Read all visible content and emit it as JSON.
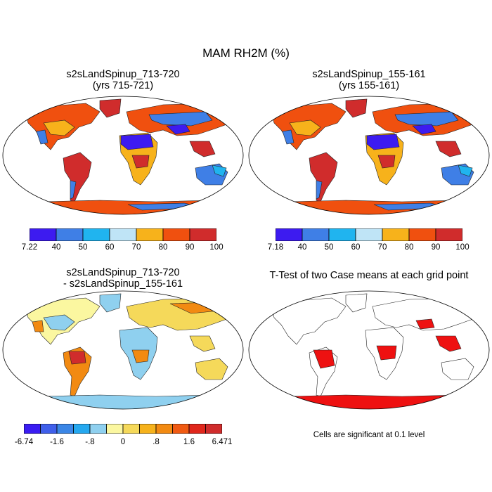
{
  "figure": {
    "title": "MAM RH2M (%)",
    "panels": [
      {
        "title_line1": "s2sLandSpinup_713-720",
        "title_line2": "(yrs 715-721)"
      },
      {
        "title_line1": "s2sLandSpinup_155-161",
        "title_line2": "(yrs 155-161)"
      },
      {
        "title_line1": "s2sLandSpinup_713-720",
        "title_line2": "- s2sLandSpinup_155-161"
      },
      {
        "title_line1": "T-Test of two Case means at each grid point",
        "title_line2": ""
      }
    ],
    "significance_note": "Cells are significant at 0.1 level"
  },
  "colorbars": {
    "rh1": {
      "colors": [
        "#3d1bf0",
        "#3f7fe6",
        "#20b4ef",
        "#bfe4f6",
        "#f7b21b",
        "#f0500f",
        "#d02c2c"
      ],
      "labels": [
        "7.22",
        "40",
        "50",
        "60",
        "70",
        "80",
        "90",
        "100"
      ]
    },
    "rh2": {
      "colors": [
        "#3d1bf0",
        "#3f7fe6",
        "#20b4ef",
        "#bfe4f6",
        "#f7b21b",
        "#f0500f",
        "#d02c2c"
      ],
      "labels": [
        "7.18",
        "40",
        "50",
        "60",
        "70",
        "80",
        "90",
        "100"
      ]
    },
    "diff": {
      "colors": [
        "#3a1cf2",
        "#3f5fea",
        "#3b86e6",
        "#25a8ef",
        "#8fd0ef",
        "#fbf7a0",
        "#f5d95a",
        "#f6b21c",
        "#f28a12",
        "#f05a12",
        "#e0271c",
        "#d02c2c"
      ],
      "labels": [
        "-6.74",
        "-1.6",
        "-.8",
        "0",
        ".8",
        "1.6",
        "6.471"
      ]
    }
  },
  "ttest_color": "#ee1111",
  "map_colors": {
    "ocean": "#ffffff",
    "coast": "#222222"
  }
}
